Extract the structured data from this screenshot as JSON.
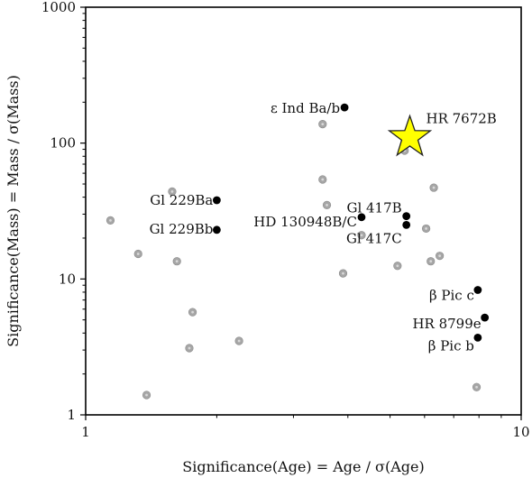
{
  "chart_data": {
    "type": "scatter",
    "xscale": "log",
    "yscale": "log",
    "xlim": [
      1,
      10
    ],
    "ylim": [
      1,
      1000
    ],
    "xlabel": "Significance(Age) = Age / σ(Age)",
    "ylabel": "Significance(Mass) = Mass / σ(Mass)",
    "x_ticks": [
      {
        "value": 1,
        "label": "1"
      },
      {
        "value": 10,
        "label": "10"
      }
    ],
    "y_ticks": [
      {
        "value": 1,
        "label": "1"
      },
      {
        "value": 10,
        "label": "10"
      },
      {
        "value": 100,
        "label": "100"
      },
      {
        "value": 1000,
        "label": "1000"
      }
    ],
    "colors": {
      "background_points": "#a6a6a6",
      "highlight_points": "#000000",
      "star_fill": "#ffff00",
      "star_edge": "#222222"
    },
    "series": [
      {
        "role": "background",
        "points": [
          {
            "x": 1.14,
            "y": 27
          },
          {
            "x": 1.32,
            "y": 15.3
          },
          {
            "x": 1.38,
            "y": 1.4
          },
          {
            "x": 1.58,
            "y": 44
          },
          {
            "x": 1.62,
            "y": 13.5
          },
          {
            "x": 1.73,
            "y": 3.1
          },
          {
            "x": 1.76,
            "y": 5.7
          },
          {
            "x": 2.25,
            "y": 3.5
          },
          {
            "x": 3.5,
            "y": 138
          },
          {
            "x": 3.5,
            "y": 54
          },
          {
            "x": 3.58,
            "y": 35
          },
          {
            "x": 3.9,
            "y": 11
          },
          {
            "x": 4.3,
            "y": 21
          },
          {
            "x": 5.2,
            "y": 12.5
          },
          {
            "x": 5.4,
            "y": 88
          },
          {
            "x": 6.05,
            "y": 23.5
          },
          {
            "x": 6.2,
            "y": 13.5
          },
          {
            "x": 6.3,
            "y": 47
          },
          {
            "x": 6.5,
            "y": 14.8
          },
          {
            "x": 7.9,
            "y": 1.6
          }
        ]
      },
      {
        "role": "highlighted",
        "points": [
          {
            "x": 2.0,
            "y": 38,
            "label": "Gl 229Ba"
          },
          {
            "x": 2.0,
            "y": 23,
            "label": "Gl 229Bb"
          },
          {
            "x": 3.93,
            "y": 183,
            "label": "ε Ind Ba/b"
          },
          {
            "x": 4.3,
            "y": 28.5,
            "label": "HD 130948B/C"
          },
          {
            "x": 5.45,
            "y": 29,
            "label": "Gl 417B"
          },
          {
            "x": 5.45,
            "y": 25,
            "label": "Gl 417C"
          },
          {
            "x": 7.95,
            "y": 8.3,
            "label": "β Pic c"
          },
          {
            "x": 8.25,
            "y": 5.2,
            "label": "HR 8799e"
          },
          {
            "x": 7.95,
            "y": 3.7,
            "label": "β Pic b"
          }
        ]
      },
      {
        "role": "featured",
        "marker": "star",
        "points": [
          {
            "x": 5.55,
            "y": 110,
            "label": "HR 7672B"
          }
        ]
      }
    ]
  }
}
